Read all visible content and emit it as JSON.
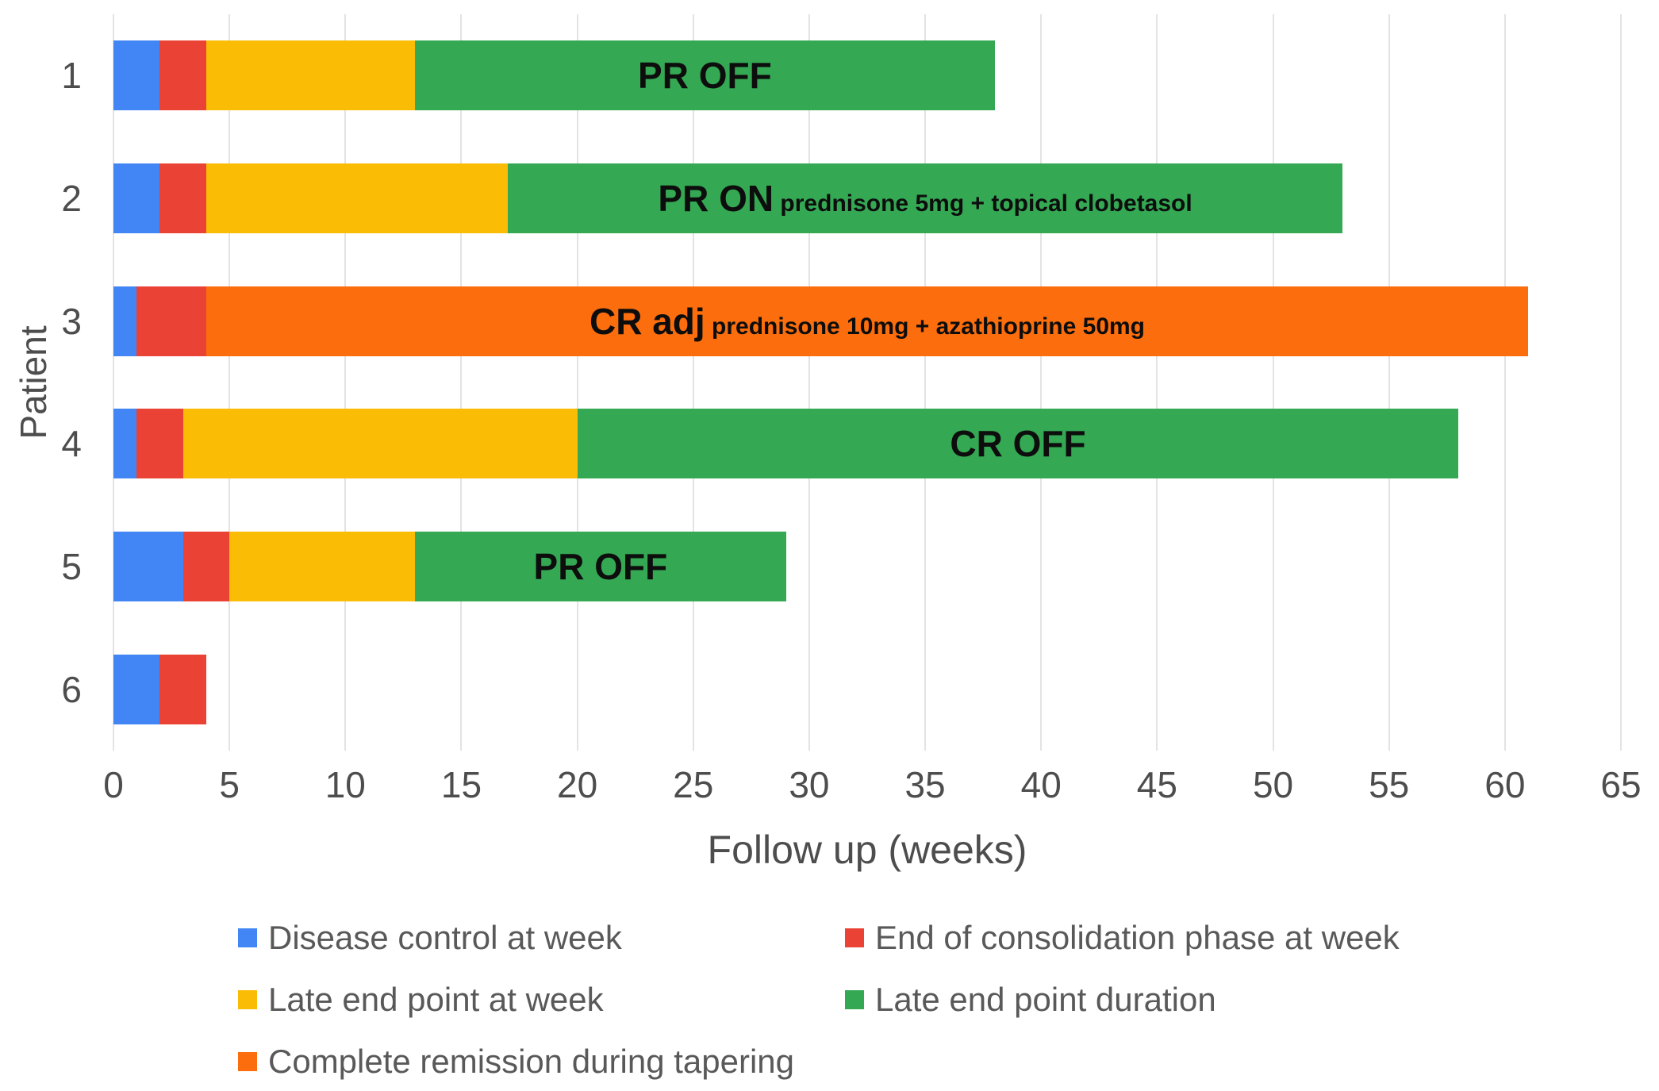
{
  "figure": {
    "background": "#ffffff"
  },
  "chart_data": {
    "type": "bar",
    "orientation": "horizontal",
    "stacked": true,
    "title": "",
    "xlabel": "Follow up (weeks)",
    "ylabel": "Patient",
    "xlim": [
      0,
      65
    ],
    "x_ticks": [
      0,
      5,
      10,
      15,
      20,
      25,
      30,
      35,
      40,
      45,
      50,
      55,
      60,
      65
    ],
    "grid": "vertical",
    "categories": [
      "1",
      "2",
      "3",
      "4",
      "5",
      "6"
    ],
    "series_colors": {
      "disease_control": "#4285F4",
      "end_consolidation": "#EA4335",
      "late_end_point": "#FBBC05",
      "late_end_point_duration": "#34A853",
      "complete_remission_tapering": "#FB6D0D"
    },
    "patients": [
      {
        "patient": "1",
        "segments": [
          {
            "key": "disease_control",
            "series": "Disease control at week",
            "from": 0,
            "to": 2
          },
          {
            "key": "end_consolidation",
            "series": "End of consolidation phase at week",
            "from": 2,
            "to": 4
          },
          {
            "key": "late_end_point",
            "series": "Late end point at week",
            "from": 4,
            "to": 13
          },
          {
            "key": "late_end_point_duration",
            "series": "Late end point duration",
            "from": 13,
            "to": 38
          }
        ],
        "annotation": {
          "main": "PR OFF",
          "sub": ""
        }
      },
      {
        "patient": "2",
        "segments": [
          {
            "key": "disease_control",
            "series": "Disease control at week",
            "from": 0,
            "to": 2
          },
          {
            "key": "end_consolidation",
            "series": "End of consolidation phase at week",
            "from": 2,
            "to": 4
          },
          {
            "key": "late_end_point",
            "series": "Late end point at week",
            "from": 4,
            "to": 17
          },
          {
            "key": "late_end_point_duration",
            "series": "Late end point duration",
            "from": 17,
            "to": 53
          }
        ],
        "annotation": {
          "main": "PR ON",
          "sub": "prednisone 5mg + topical clobetasol"
        }
      },
      {
        "patient": "3",
        "segments": [
          {
            "key": "disease_control",
            "series": "Disease control at week",
            "from": 0,
            "to": 1
          },
          {
            "key": "end_consolidation",
            "series": "End of consolidation phase at week",
            "from": 1,
            "to": 4
          },
          {
            "key": "complete_remission_tapering",
            "series": "Complete remission during tapering",
            "from": 4,
            "to": 61
          }
        ],
        "annotation": {
          "main": "CR adj",
          "sub": "prednisone 10mg + azathioprine 50mg"
        }
      },
      {
        "patient": "4",
        "segments": [
          {
            "key": "disease_control",
            "series": "Disease control at week",
            "from": 0,
            "to": 1
          },
          {
            "key": "end_consolidation",
            "series": "End of consolidation phase at week",
            "from": 1,
            "to": 3
          },
          {
            "key": "late_end_point",
            "series": "Late end point at week",
            "from": 3,
            "to": 20
          },
          {
            "key": "late_end_point_duration",
            "series": "Late end point duration",
            "from": 20,
            "to": 58
          }
        ],
        "annotation": {
          "main": "CR OFF",
          "sub": ""
        }
      },
      {
        "patient": "5",
        "segments": [
          {
            "key": "disease_control",
            "series": "Disease control at week",
            "from": 0,
            "to": 3
          },
          {
            "key": "end_consolidation",
            "series": "End of consolidation phase at week",
            "from": 3,
            "to": 5
          },
          {
            "key": "late_end_point",
            "series": "Late end point at week",
            "from": 5,
            "to": 13
          },
          {
            "key": "late_end_point_duration",
            "series": "Late end point duration",
            "from": 13,
            "to": 29
          }
        ],
        "annotation": {
          "main": "PR OFF",
          "sub": ""
        }
      },
      {
        "patient": "6",
        "segments": [
          {
            "key": "disease_control",
            "series": "Disease control at week",
            "from": 0,
            "to": 2
          },
          {
            "key": "end_consolidation",
            "series": "End of consolidation phase at week",
            "from": 2,
            "to": 4
          }
        ],
        "annotation": null
      }
    ],
    "legend": {
      "position": "bottom",
      "columns": 2,
      "items": [
        {
          "key": "disease_control",
          "label": "Disease control at week",
          "color": "#4285F4"
        },
        {
          "key": "end_consolidation",
          "label": "End of consolidation phase at week",
          "color": "#EA4335"
        },
        {
          "key": "late_end_point",
          "label": "Late end point at week",
          "color": "#FBBC05"
        },
        {
          "key": "late_end_point_duration",
          "label": "Late end point duration",
          "color": "#34A853"
        },
        {
          "key": "complete_remission_tapering",
          "label": "Complete remission during tapering",
          "color": "#FB6D0D"
        }
      ]
    }
  }
}
